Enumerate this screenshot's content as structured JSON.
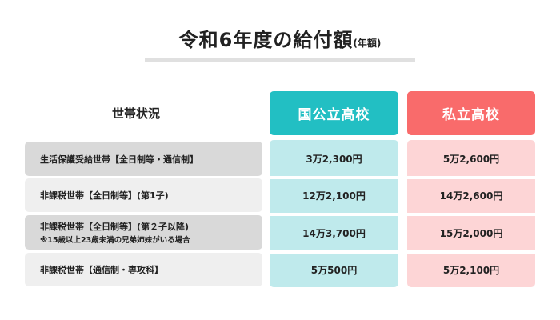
{
  "title": {
    "main": "令和6年度の給付額",
    "suffix": "(年額)"
  },
  "table": {
    "header_label": "世帯状況",
    "columns": {
      "public": "国公立高校",
      "private": "私立高校"
    },
    "rows": [
      {
        "label": "生活保護受給世帯【全日制等・通信制】",
        "sub": "",
        "public": "3万2,300円",
        "private": "5万2,600円"
      },
      {
        "label": "非課税世帯【全日制等】(第1子)",
        "sub": "",
        "public": "12万2,100円",
        "private": "14万2,600円"
      },
      {
        "label": "非課税世帯【全日制等】(第２子以降)",
        "sub": "※15歳以上23歳未満の兄弟姉妹がいる場合",
        "public": "14万3,700円",
        "private": "15万2,000円"
      },
      {
        "label": "非課税世帯【通信制・専攻科】",
        "sub": "",
        "public": "5万500円",
        "private": "5万2,100円"
      }
    ]
  },
  "colors": {
    "public_header": "#22bfc3",
    "public_body": "#bfeaec",
    "private_header": "#f96b6b",
    "private_body": "#fdd5d6"
  }
}
